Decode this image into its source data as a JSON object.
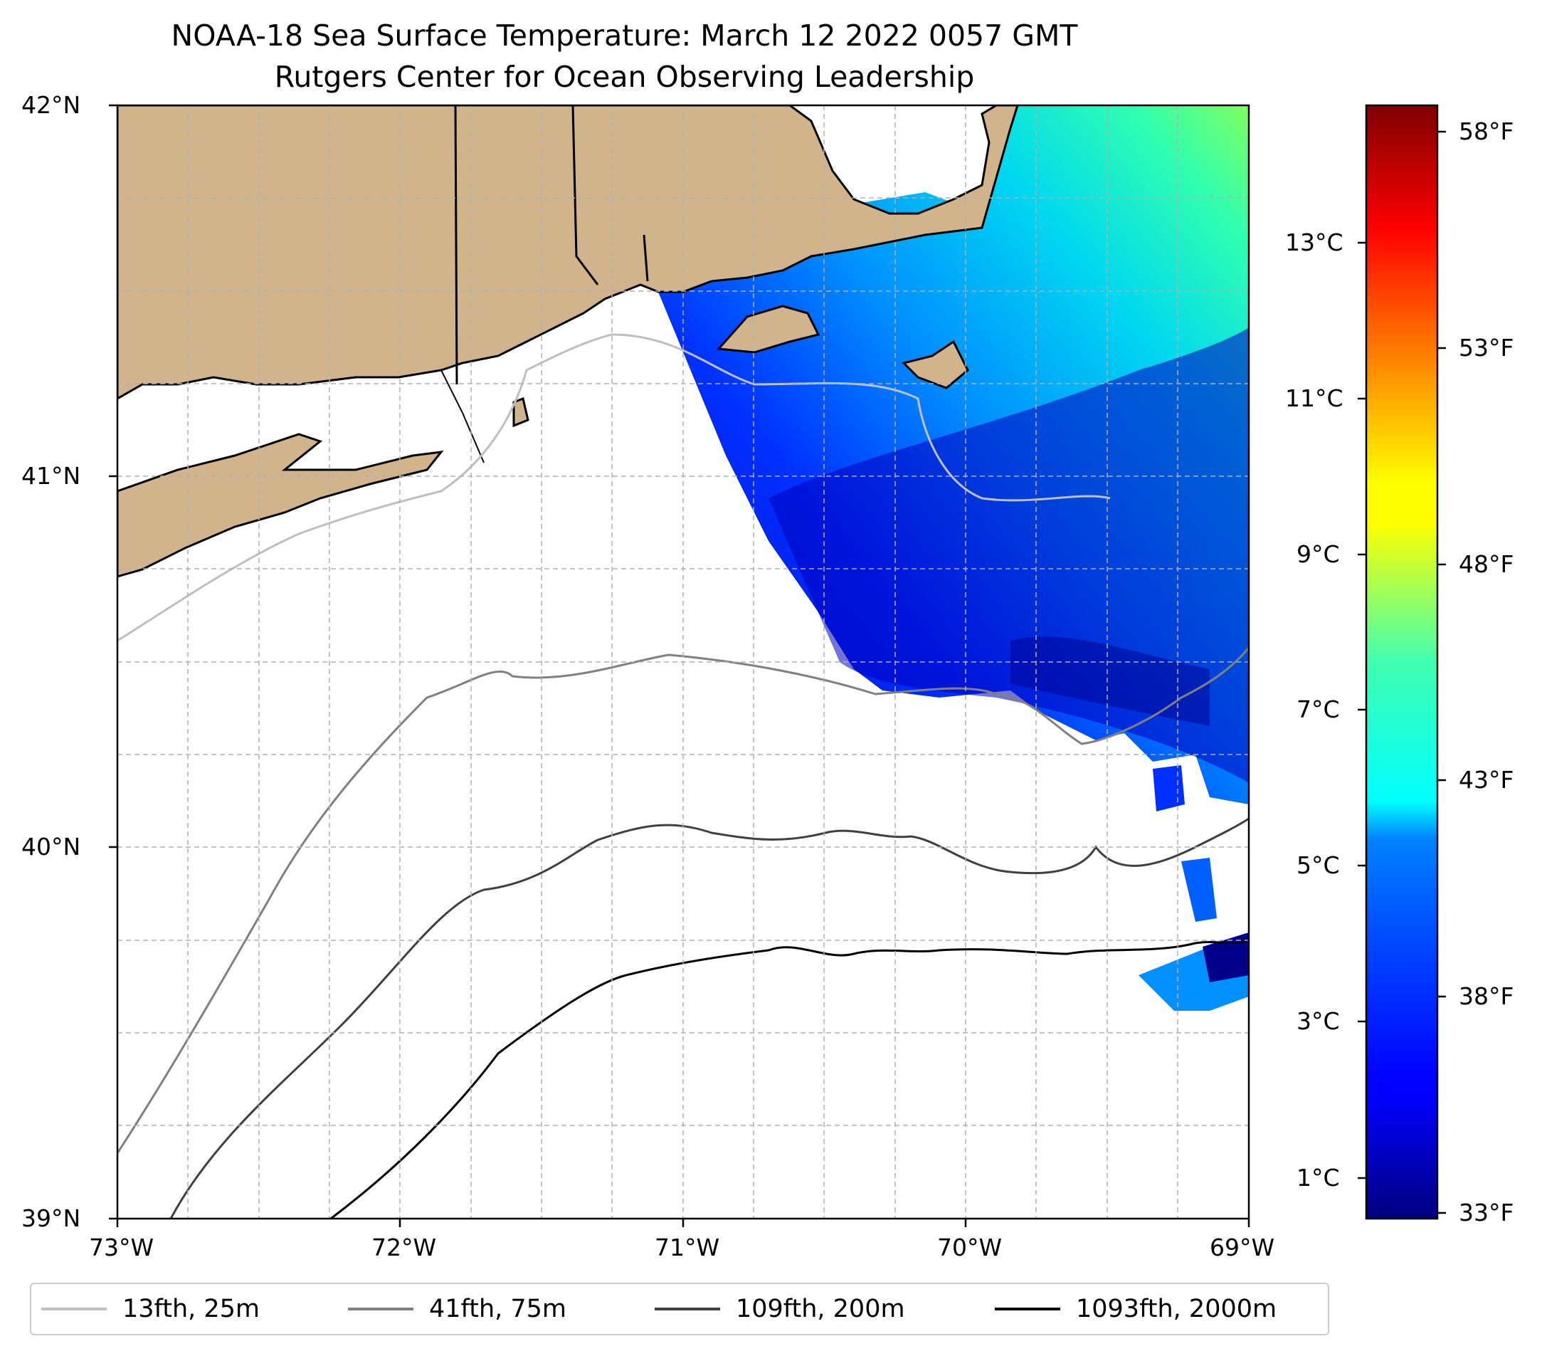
{
  "title": {
    "line1": "NOAA-18 Sea Surface Temperature: March 12 2022 0057 GMT",
    "line2": "Rutgers Center for Ocean Observing Leadership"
  },
  "map": {
    "lon_range": [
      -73,
      -69
    ],
    "lat_range": [
      39,
      42
    ],
    "lat_ticks": [
      "42°N",
      "41°N",
      "40°N",
      "39°N"
    ],
    "lon_ticks": [
      "73°W",
      "72°W",
      "71°W",
      "70°W",
      "69°W"
    ],
    "land_color": "#d2b48c",
    "gridlines": true
  },
  "colorbar": {
    "cmap": "jet",
    "celsius_ticks": [
      "13°C",
      "11°C",
      "9°C",
      "7°C",
      "5°C",
      "3°C",
      "1°C"
    ],
    "fahrenheit_ticks": [
      "58°F",
      "53°F",
      "48°F",
      "43°F",
      "38°F",
      "33°F"
    ]
  },
  "legend": {
    "items": [
      {
        "label": "13fth, 25m",
        "color": "#bfbfbf"
      },
      {
        "label": "41fth, 75m",
        "color": "#808080"
      },
      {
        "label": "109fth, 200m",
        "color": "#404040"
      },
      {
        "label": "1093fth, 2000m",
        "color": "#000000"
      }
    ]
  }
}
